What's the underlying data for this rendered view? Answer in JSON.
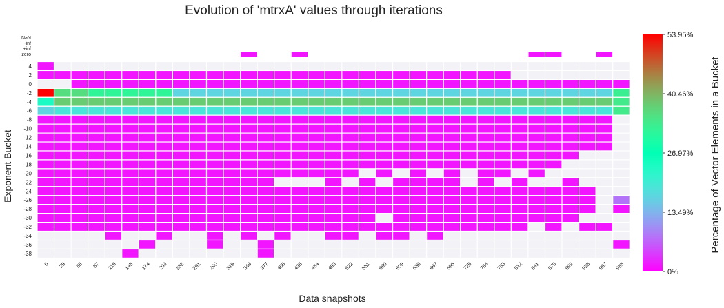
{
  "chart_data": {
    "type": "heatmap",
    "title": "Evolution of 'mtrxA' values through iterations",
    "xlabel": "Data snapshots",
    "ylabel": "Exponent Bucket",
    "colorbar_label": "Percentage of Vector Elements in a Bucket",
    "colorbar_ticks": [
      "0%",
      "13.49%",
      "26.97%",
      "40.46%",
      "53.95%"
    ],
    "colorbar_range": [
      0,
      53.95
    ],
    "colormap": "rainbow",
    "empty_cell_color": "#f2f2f7",
    "special_rows": [
      "NaN",
      "-inf",
      "+inf",
      "zero"
    ],
    "exponent_rows": [
      "4",
      "2",
      "0",
      "-2",
      "-4",
      "-6",
      "-8",
      "-10",
      "-12",
      "-14",
      "-16",
      "-18",
      "-20",
      "-22",
      "-24",
      "-26",
      "-28",
      "-30",
      "-32",
      "-34",
      "-36",
      "-38"
    ],
    "x_ticks": [
      "0",
      "29",
      "58",
      "87",
      "116",
      "145",
      "174",
      "203",
      "232",
      "261",
      "290",
      "319",
      "348",
      "377",
      "406",
      "435",
      "464",
      "493",
      "522",
      "551",
      "580",
      "609",
      "638",
      "667",
      "696",
      "725",
      "754",
      "783",
      "812",
      "841",
      "870",
      "899",
      "928",
      "957",
      "986"
    ],
    "special_nonzero": {
      "zero": [
        12,
        15,
        29,
        30,
        33
      ]
    },
    "exponent_value_grid": [
      "1..................................",
      "1111111111111111111111111111.......",
      "..111111111111111111111111111111111",
      "M887777766666666666666666666666666A",
      "F999999999999999999999999999999999C",
      "6555555555555555555555555555555555C",
      "1111111111111111111111111111111111.",
      "1111111111111111111111111111111111.",
      "1111111111111111111111111111111111.",
      "1111111111111111111111111111111111.",
      "11111111111111111111111111111111...",
      "1111111111111111111111111111111....",
      "1111111111111111111.1.1.1.11.1.....",
      "11111111111111...1.1.1111.1.1..1...",
      "111111111111111111111111111111111..",
      "111111111111111111111111111111111.3",
      "111111111111111111111111111111111.1",
      "11111111111111111111.11111111111...",
      "11111111111111111111111111111.1.11.",
      "....1..1..1.1.1..11.11.1..........",
      "......1...1..1....................1",
      ".....1.......1....................."
    ]
  }
}
